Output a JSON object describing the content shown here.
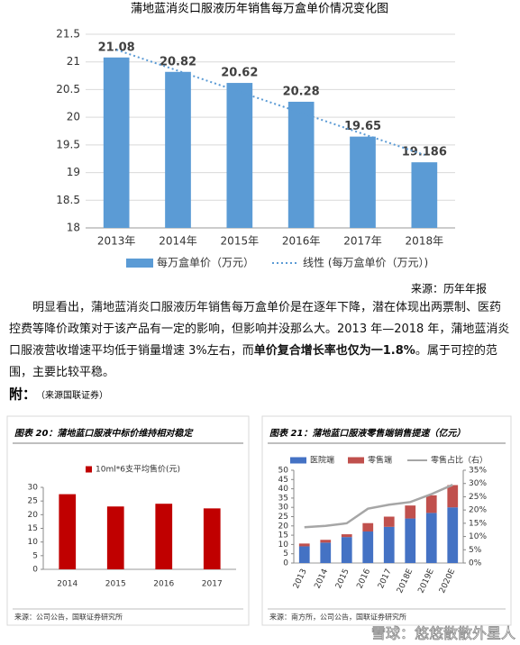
{
  "chart_data": [
    {
      "type": "bar",
      "title": "蒲地蓝消炎口服液历年销售每万盒单价情况变化图",
      "categories": [
        "2013年",
        "2014年",
        "2015年",
        "2016年",
        "2017年",
        "2018年"
      ],
      "series": [
        {
          "name": "每万盒单价（万元）",
          "color": "#5b9bd5",
          "values": [
            21.08,
            20.82,
            20.62,
            20.28,
            19.65,
            19.186
          ]
        },
        {
          "name": "线性 (每万盒单价（万元）)",
          "kind": "line",
          "dash": true,
          "color": "#5b9bd5",
          "values": [
            21.22,
            20.84,
            20.46,
            20.08,
            19.7,
            19.32
          ]
        }
      ],
      "ylim": [
        18,
        21.5
      ],
      "yticks": [
        18,
        18.5,
        19,
        19.5,
        20,
        20.5,
        21,
        21.5
      ],
      "grid": true,
      "data_labels": true,
      "source": "来源：历年年报"
    },
    {
      "type": "bar",
      "title": "图表 20：蒲地蓝口服液中标价维持相对稳定",
      "categories": [
        "2014",
        "2015",
        "2016",
        "2017"
      ],
      "series": [
        {
          "name": "10ml*6支平均售价(元)",
          "color": "#c00000",
          "values": [
            27.5,
            23,
            24,
            22.3
          ]
        }
      ],
      "ylim": [
        0,
        30
      ],
      "yticks": [
        0,
        5,
        10,
        15,
        20,
        25,
        30
      ],
      "grid": false,
      "source": "来源：公司公告，国联证券研究所"
    },
    {
      "type": "bar",
      "title": "图表 21：蒲地蓝口服液零售端销售提速（亿元）",
      "categories": [
        "2013",
        "2014",
        "2015",
        "2016",
        "2017",
        "2018E",
        "2019E",
        "2020E"
      ],
      "series": [
        {
          "name": "医院端",
          "color": "#4472c4",
          "values": [
            9,
            11,
            14,
            17,
            19.5,
            24,
            27,
            30
          ]
        },
        {
          "name": "零售端",
          "color": "#c0504d",
          "values": [
            1.5,
            1.5,
            1.5,
            4.5,
            5.5,
            7,
            9.5,
            12
          ]
        },
        {
          "name": "零售占比（右）",
          "kind": "line",
          "axis": "y2",
          "color": "#a6a6a6",
          "values": [
            13.5,
            14,
            15,
            20.5,
            22,
            23,
            26,
            29.5
          ]
        }
      ],
      "ylim": [
        0,
        50
      ],
      "yticks": [
        0,
        5,
        10,
        15,
        20,
        25,
        30,
        35,
        40,
        45,
        50
      ],
      "y2lim": [
        0,
        35
      ],
      "y2ticks": [
        {
          "value": 0,
          "label": "0%"
        },
        {
          "value": 5,
          "label": "5%"
        },
        {
          "value": 10,
          "label": "10%"
        },
        {
          "value": 15,
          "label": "15%"
        },
        {
          "value": 20,
          "label": "20%"
        },
        {
          "value": 25,
          "label": "25%"
        },
        {
          "value": 30,
          "label": "30%"
        },
        {
          "value": 35,
          "label": "35%"
        }
      ],
      "grid": false,
      "source": "来源：南方所，公司公告，国联证券研究所"
    }
  ],
  "document": {
    "paragraph": [
      "明显看出，蒲地蓝消炎口服液历年销售每万盒单价是在逐年下降，潜在体现出两票制、医药控费等降价政策对于该产品有一定的影响，但影响并没那么大。2013 年—2018 年，蒲地蓝消炎口服液营收增速平均低于销量增速 3%左右，而",
      "单价复合增长率也仅为一1.8%",
      "。属于可控的范围，主要比较平稳。"
    ],
    "appendix_label": "附：",
    "appendix_source": "（来源国联证券）",
    "watermark": "雪球：悠悠散散外星人"
  }
}
